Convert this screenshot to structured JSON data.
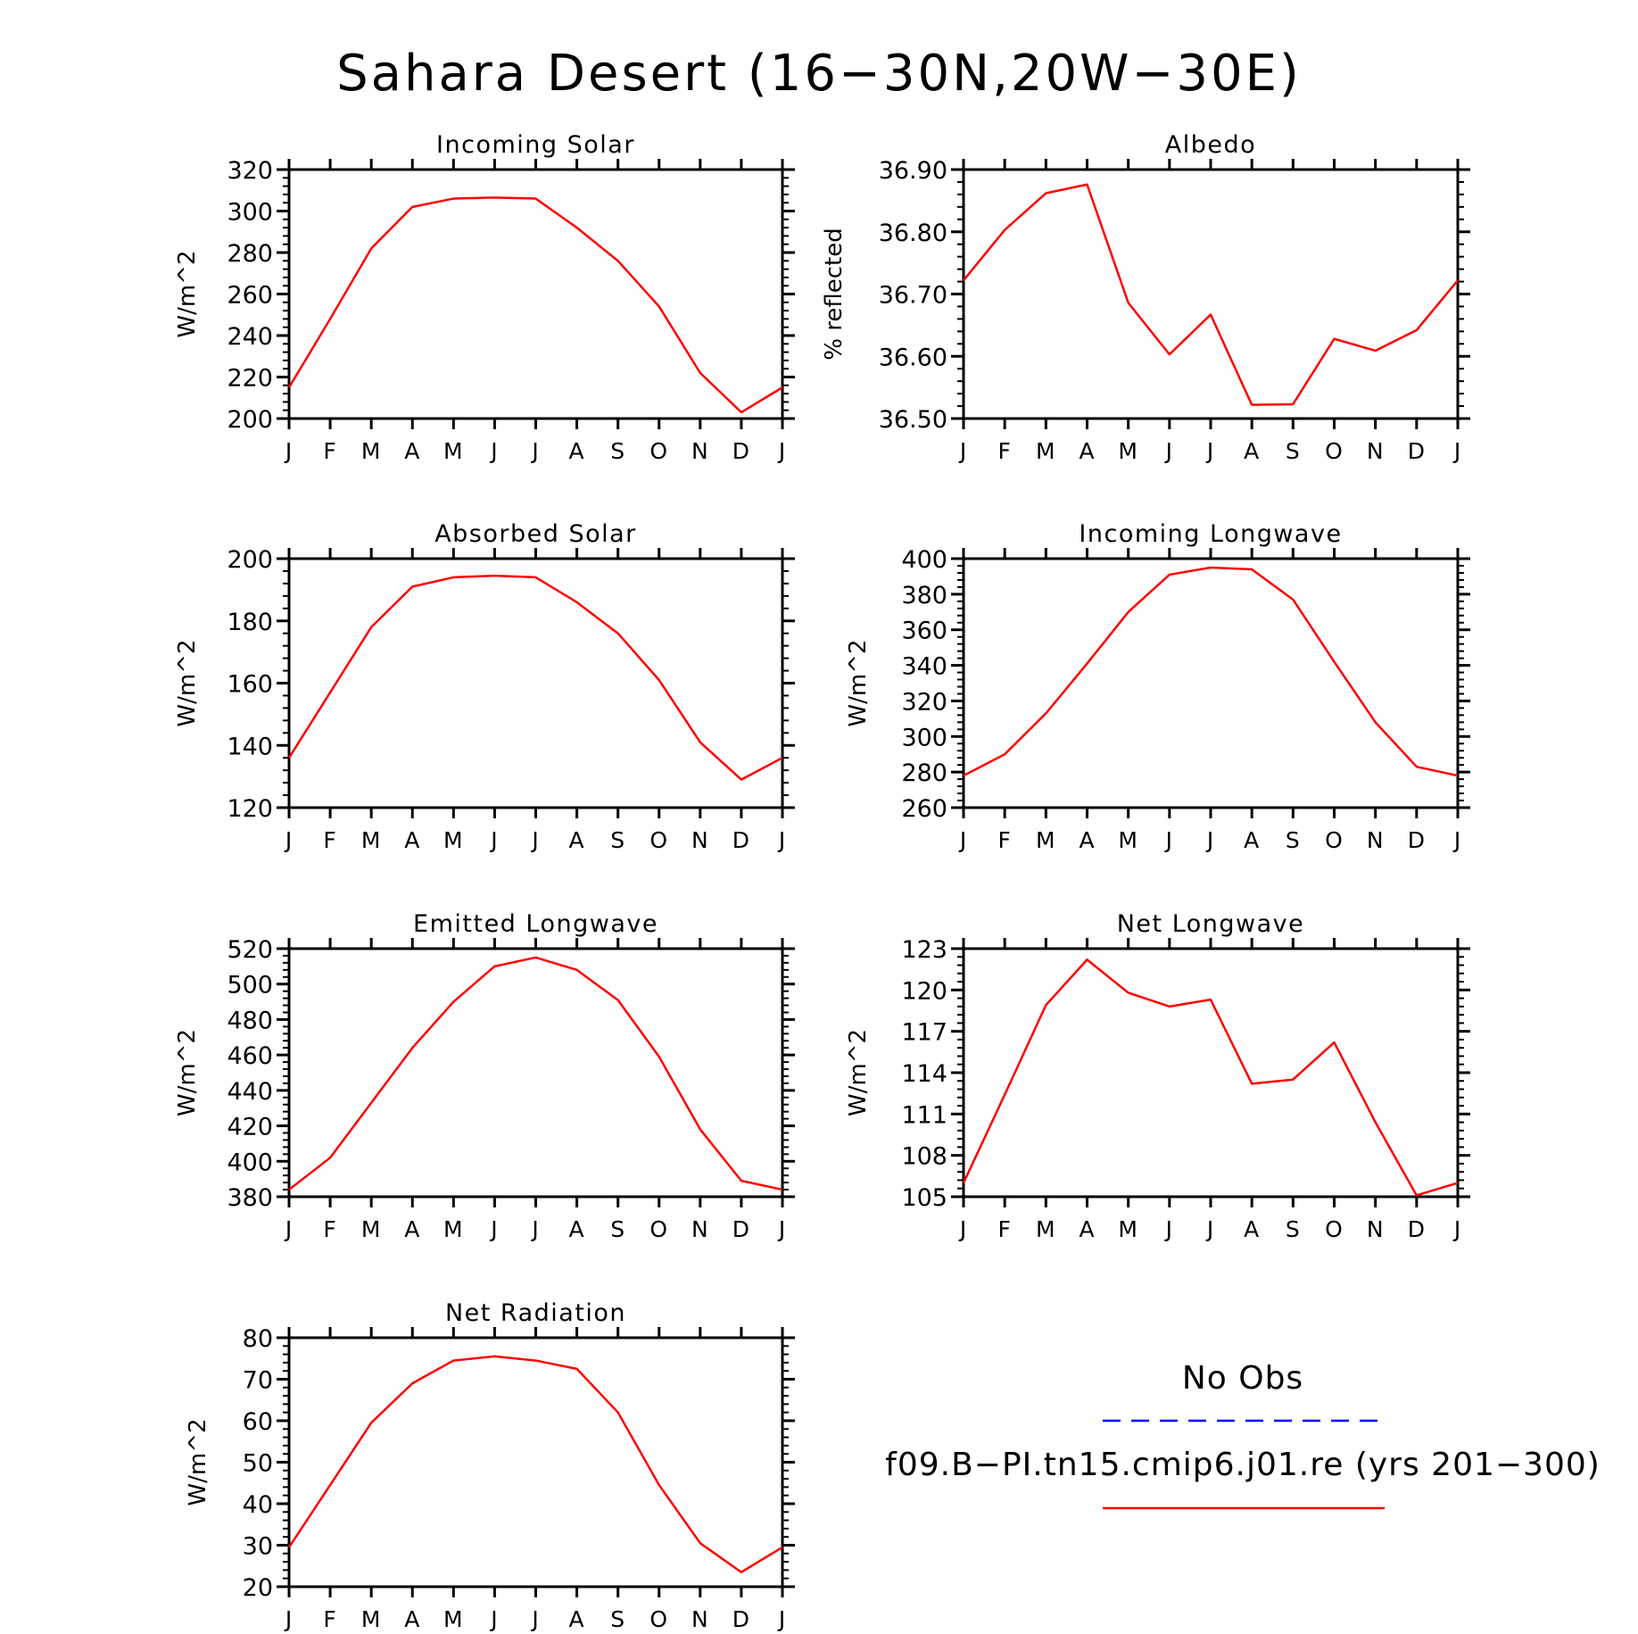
{
  "figure": {
    "title": "Sahara Desert (16−30N,20W−30E)"
  },
  "legend": {
    "obs_label": "No Obs",
    "obs_color": "#0000ff",
    "model_label": "f09.B−PI.tn15.cmip6.j01.re (yrs 201−300)",
    "model_color": "#ff0000"
  },
  "chart_data": [
    {
      "type": "line",
      "title": "Incoming Solar",
      "ylabel": "W/m^2",
      "ylim": [
        200,
        320
      ],
      "yticks": [
        "200",
        "220",
        "240",
        "260",
        "280",
        "300",
        "320"
      ],
      "yminor_step": 4,
      "categories": [
        "J",
        "F",
        "M",
        "A",
        "M",
        "J",
        "J",
        "A",
        "S",
        "O",
        "N",
        "D",
        "J"
      ],
      "series": [
        {
          "color": "#ff0000",
          "values": [
            215,
            248,
            282,
            302,
            306,
            306.5,
            306,
            292,
            276,
            254,
            222,
            203,
            215
          ]
        }
      ]
    },
    {
      "type": "line",
      "title": "Albedo",
      "ylabel": "% reflected",
      "ylim": [
        36.5,
        36.9
      ],
      "yticks": [
        "36.50",
        "36.60",
        "36.70",
        "36.80",
        "36.90"
      ],
      "yminor_step": 0.02,
      "categories": [
        "J",
        "F",
        "M",
        "A",
        "M",
        "J",
        "J",
        "A",
        "S",
        "O",
        "N",
        "D",
        "J"
      ],
      "series": [
        {
          "color": "#ff0000",
          "values": [
            36.722,
            36.803,
            36.862,
            36.876,
            36.686,
            36.603,
            36.667,
            36.522,
            36.523,
            36.628,
            36.609,
            36.642,
            36.722
          ]
        }
      ]
    },
    {
      "type": "line",
      "title": "Absorbed Solar",
      "ylabel": "W/m^2",
      "ylim": [
        120,
        200
      ],
      "yticks": [
        "120",
        "140",
        "160",
        "180",
        "200"
      ],
      "yminor_step": 4,
      "categories": [
        "J",
        "F",
        "M",
        "A",
        "M",
        "J",
        "J",
        "A",
        "S",
        "O",
        "N",
        "D",
        "J"
      ],
      "series": [
        {
          "color": "#ff0000",
          "values": [
            136,
            157,
            178,
            191,
            194,
            194.5,
            194,
            186,
            176,
            161,
            141,
            129,
            136
          ]
        }
      ]
    },
    {
      "type": "line",
      "title": "Incoming Longwave",
      "ylabel": "W/m^2",
      "ylim": [
        260,
        400
      ],
      "yticks": [
        "260",
        "280",
        "300",
        "320",
        "340",
        "360",
        "380",
        "400"
      ],
      "yminor_step": 4,
      "categories": [
        "J",
        "F",
        "M",
        "A",
        "M",
        "J",
        "J",
        "A",
        "S",
        "O",
        "N",
        "D",
        "J"
      ],
      "series": [
        {
          "color": "#ff0000",
          "values": [
            278,
            290,
            313,
            341,
            370,
            391,
            395,
            394,
            377,
            342,
            308,
            283,
            278
          ]
        }
      ]
    },
    {
      "type": "line",
      "title": "Emitted Longwave",
      "ylabel": "W/m^2",
      "ylim": [
        380,
        520
      ],
      "yticks": [
        "380",
        "400",
        "420",
        "440",
        "460",
        "480",
        "500",
        "520"
      ],
      "yminor_step": 4,
      "categories": [
        "J",
        "F",
        "M",
        "A",
        "M",
        "J",
        "J",
        "A",
        "S",
        "O",
        "N",
        "D",
        "J"
      ],
      "series": [
        {
          "color": "#ff0000",
          "values": [
            384,
            402,
            433,
            464,
            490,
            510,
            515,
            508,
            491,
            459,
            418,
            389,
            384
          ]
        }
      ]
    },
    {
      "type": "line",
      "title": "Net Longwave",
      "ylabel": "W/m^2",
      "ylim": [
        105,
        123
      ],
      "yticks": [
        "105",
        "108",
        "111",
        "114",
        "117",
        "120",
        "123"
      ],
      "yminor_step": 0.6,
      "categories": [
        "J",
        "F",
        "M",
        "A",
        "M",
        "J",
        "J",
        "A",
        "S",
        "O",
        "N",
        "D",
        "J"
      ],
      "series": [
        {
          "color": "#ff0000",
          "values": [
            106,
            112.4,
            118.9,
            122.2,
            119.8,
            118.8,
            119.3,
            113.2,
            113.5,
            116.2,
            110.4,
            105.1,
            106
          ]
        }
      ]
    },
    {
      "type": "line",
      "title": "Net Radiation",
      "ylabel": "W/m^2",
      "ylim": [
        20,
        80
      ],
      "yticks": [
        "20",
        "30",
        "40",
        "50",
        "60",
        "70",
        "80"
      ],
      "yminor_step": 2,
      "categories": [
        "J",
        "F",
        "M",
        "A",
        "M",
        "J",
        "J",
        "A",
        "S",
        "O",
        "N",
        "D",
        "J"
      ],
      "series": [
        {
          "color": "#ff0000",
          "values": [
            29.5,
            44.5,
            59.5,
            69,
            74.5,
            75.5,
            74.5,
            72.5,
            62,
            44.5,
            30.5,
            23.5,
            29.5
          ]
        }
      ]
    }
  ]
}
